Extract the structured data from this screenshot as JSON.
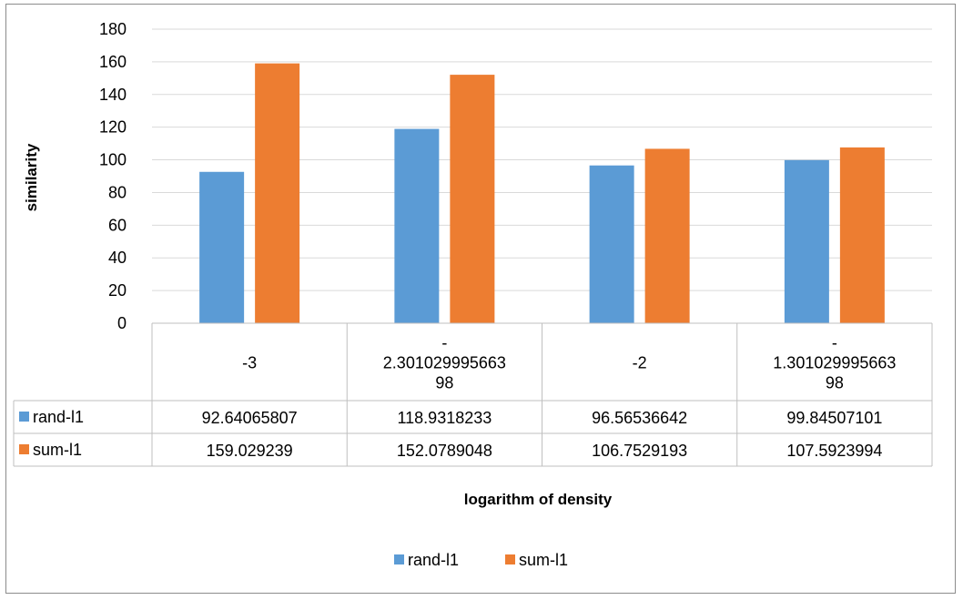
{
  "chart_data": {
    "type": "bar",
    "title": "",
    "xlabel": "logarithm of density",
    "ylabel": "similarity",
    "ylim": [
      0,
      180
    ],
    "yticks": [
      "0",
      "20",
      "40",
      "60",
      "80",
      "100",
      "120",
      "140",
      "160",
      "180"
    ],
    "grid": true,
    "legend_placement": "bottom",
    "categories": [
      "-3",
      "-2.30102999566398",
      "-2",
      "-1.30102999566398"
    ],
    "category_label_lines": [
      [
        "-3"
      ],
      [
        "-",
        "2.301029995663",
        "98"
      ],
      [
        "-2"
      ],
      [
        "-",
        "1.301029995663",
        "98"
      ]
    ],
    "series": [
      {
        "name": "rand-l1",
        "color": "#5b9bd5",
        "values": [
          92.64065807,
          118.9318233,
          96.56536642,
          99.84507101
        ],
        "table_values": [
          "92.64065807",
          "118.9318233",
          "96.56536642",
          "99.84507101"
        ]
      },
      {
        "name": "sum-l1",
        "color": "#ed7d31",
        "values": [
          159.029239,
          152.0789048,
          106.7529193,
          107.5923994
        ],
        "table_values": [
          "159.029239",
          "152.0789048",
          "106.7529193",
          "107.5923994"
        ]
      }
    ]
  }
}
